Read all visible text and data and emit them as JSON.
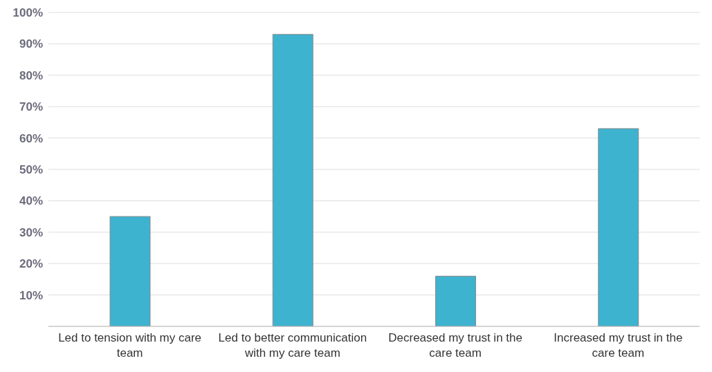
{
  "chart_data": {
    "type": "bar",
    "categories": [
      "Led to tension with my care team",
      "Led to better communication with my care team",
      "Decreased my trust in the care team",
      "Increased my trust in the care team"
    ],
    "values": [
      35,
      93,
      16,
      63
    ],
    "color": "#3db3cf",
    "ylim": [
      0,
      100
    ],
    "yticks": [
      {
        "value": 0,
        "label": null
      },
      {
        "value": 10,
        "label": "10%"
      },
      {
        "value": 20,
        "label": "20%"
      },
      {
        "value": 30,
        "label": "30%"
      },
      {
        "value": 40,
        "label": "40%"
      },
      {
        "value": 50,
        "label": "50%"
      },
      {
        "value": 60,
        "label": "60%"
      },
      {
        "value": 70,
        "label": "70%"
      },
      {
        "value": 80,
        "label": "80%"
      },
      {
        "value": 90,
        "label": "90%"
      },
      {
        "value": 100,
        "label": "100%"
      }
    ],
    "grid": "y"
  }
}
